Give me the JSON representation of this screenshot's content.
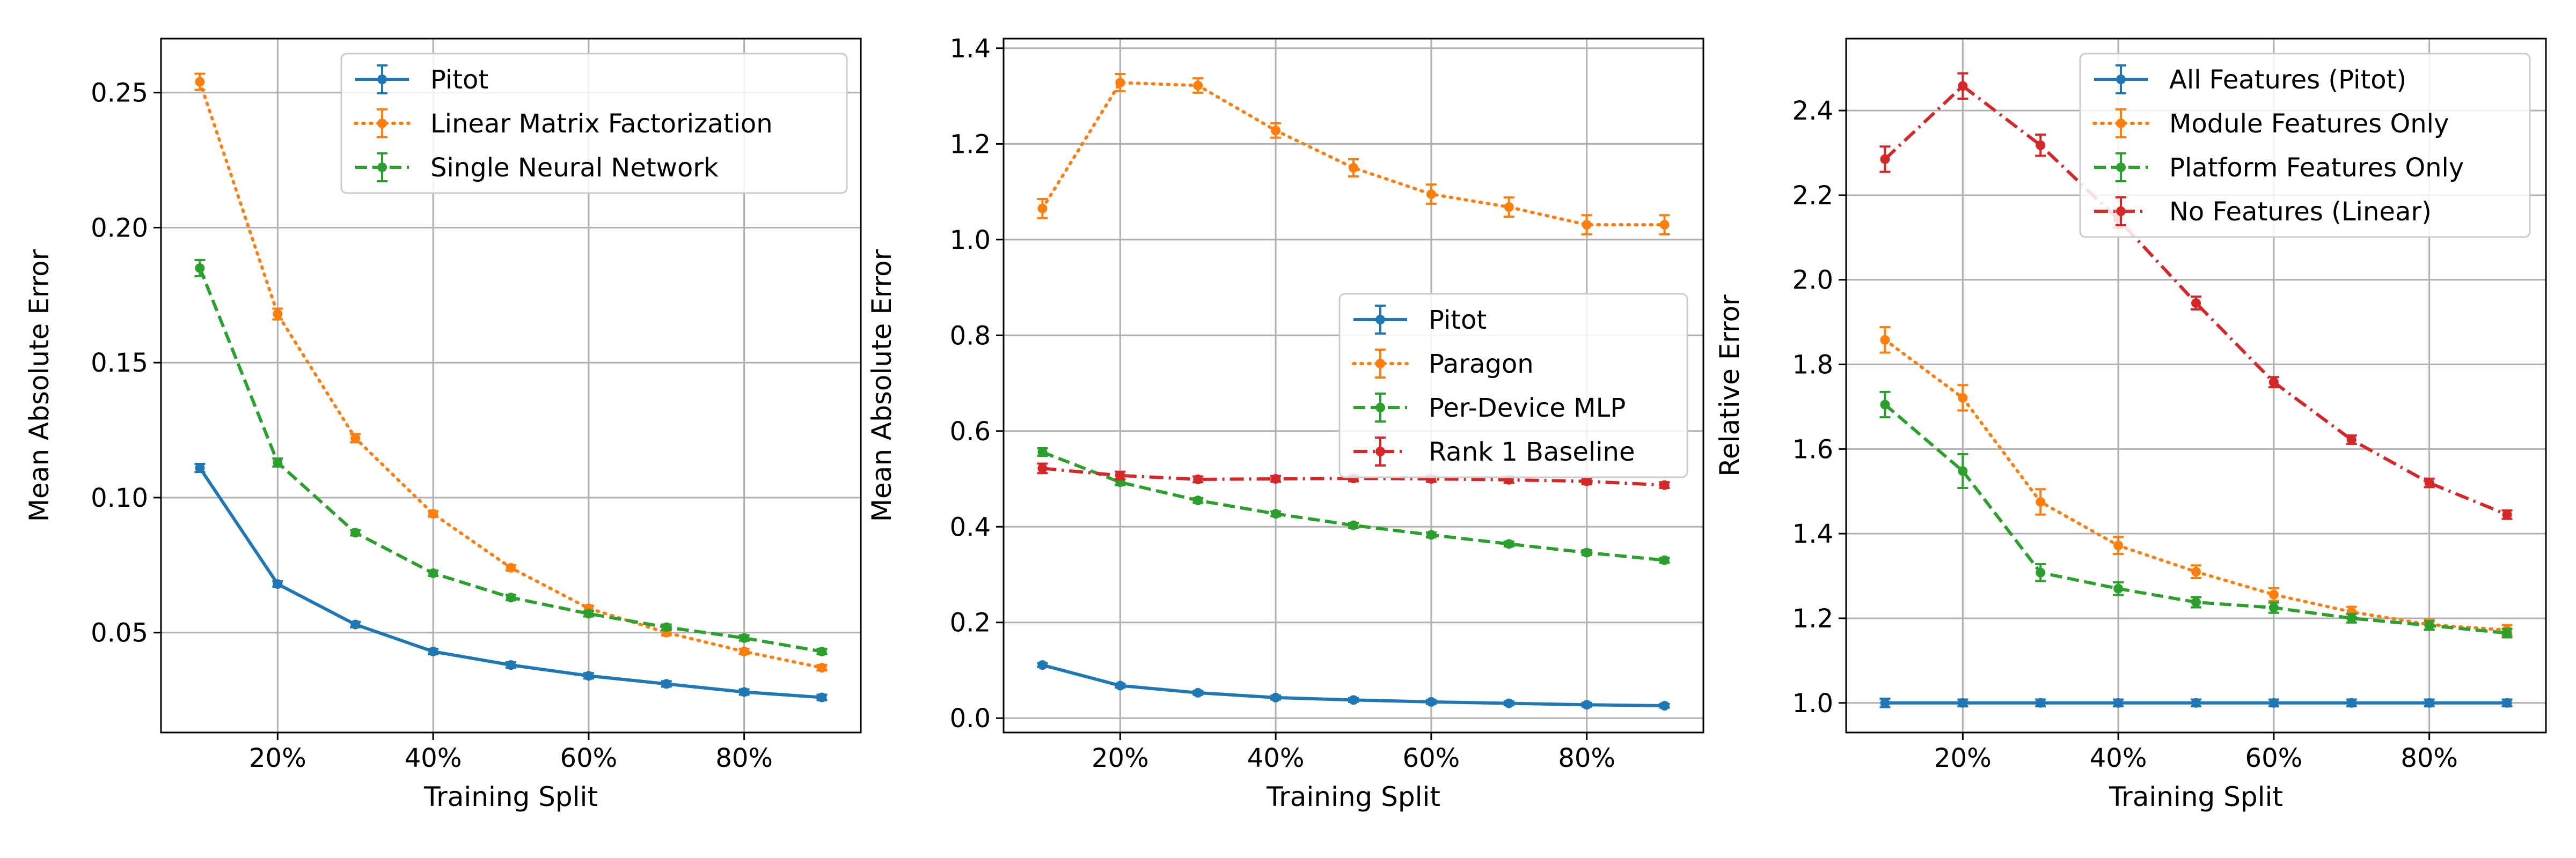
{
  "chart_data": [
    {
      "type": "line",
      "title": "",
      "xlabel": "Training Split",
      "ylabel": "Mean Absolute Error",
      "grid": true,
      "legend_position": "top-right",
      "xlim": [
        5,
        95
      ],
      "ylim": [
        0.013,
        0.27
      ],
      "xticks": [
        20,
        40,
        60,
        80
      ],
      "xtick_labels": [
        "20%",
        "40%",
        "60%",
        "80%"
      ],
      "yticks": [
        0.05,
        0.1,
        0.15,
        0.2,
        0.25
      ],
      "ytick_labels": [
        "0.05",
        "0.10",
        "0.15",
        "0.20",
        "0.25"
      ],
      "x": [
        10,
        20,
        30,
        40,
        50,
        60,
        70,
        80,
        90
      ],
      "series": [
        {
          "name": "Pitot",
          "color": "#1f77b4",
          "linestyle": "solid",
          "values": [
            0.111,
            0.068,
            0.053,
            0.043,
            0.038,
            0.034,
            0.031,
            0.028,
            0.026
          ],
          "errors": [
            0.0015,
            0.001,
            0.001,
            0.001,
            0.001,
            0.001,
            0.001,
            0.001,
            0.001
          ]
        },
        {
          "name": "Linear Matrix Factorization",
          "color": "#ff7f0e",
          "linestyle": "dotted",
          "values": [
            0.254,
            0.168,
            0.122,
            0.094,
            0.074,
            0.059,
            0.05,
            0.043,
            0.037
          ],
          "errors": [
            0.003,
            0.002,
            0.0015,
            0.001,
            0.001,
            0.001,
            0.001,
            0.001,
            0.001
          ]
        },
        {
          "name": "Single Neural Network",
          "color": "#2ca02c",
          "linestyle": "dashed",
          "values": [
            0.185,
            0.113,
            0.087,
            0.072,
            0.063,
            0.057,
            0.052,
            0.048,
            0.043
          ],
          "errors": [
            0.003,
            0.0015,
            0.001,
            0.001,
            0.001,
            0.001,
            0.001,
            0.001,
            0.001
          ]
        }
      ]
    },
    {
      "type": "line",
      "title": "",
      "xlabel": "Training Split",
      "ylabel": "Mean Absolute Error",
      "grid": true,
      "legend_position": "center-right",
      "xlim": [
        5,
        95
      ],
      "ylim": [
        -0.03,
        1.42
      ],
      "xticks": [
        20,
        40,
        60,
        80
      ],
      "xtick_labels": [
        "20%",
        "40%",
        "60%",
        "80%"
      ],
      "yticks": [
        0.0,
        0.2,
        0.4,
        0.6,
        0.8,
        1.0,
        1.2,
        1.4
      ],
      "ytick_labels": [
        "0.0",
        "0.2",
        "0.4",
        "0.6",
        "0.8",
        "1.0",
        "1.2",
        "1.4"
      ],
      "x": [
        10,
        20,
        30,
        40,
        50,
        60,
        70,
        80,
        90
      ],
      "series": [
        {
          "name": "Pitot",
          "color": "#1f77b4",
          "linestyle": "solid",
          "values": [
            0.111,
            0.068,
            0.053,
            0.043,
            0.038,
            0.034,
            0.031,
            0.028,
            0.026
          ],
          "errors": [
            0.004,
            0.004,
            0.004,
            0.004,
            0.004,
            0.004,
            0.004,
            0.004,
            0.004
          ]
        },
        {
          "name": "Paragon",
          "color": "#ff7f0e",
          "linestyle": "dotted",
          "values": [
            1.065,
            1.328,
            1.322,
            1.228,
            1.15,
            1.095,
            1.068,
            1.031,
            1.031
          ],
          "errors": [
            0.02,
            0.018,
            0.015,
            0.015,
            0.018,
            0.02,
            0.02,
            0.02,
            0.02
          ]
        },
        {
          "name": "Per-Device MLP",
          "color": "#2ca02c",
          "linestyle": "dashed",
          "values": [
            0.556,
            0.493,
            0.455,
            0.427,
            0.403,
            0.383,
            0.364,
            0.346,
            0.33
          ],
          "errors": [
            0.008,
            0.006,
            0.005,
            0.005,
            0.005,
            0.005,
            0.005,
            0.005,
            0.005
          ]
        },
        {
          "name": "Rank 1 Baseline",
          "color": "#d62728",
          "linestyle": "dashdot",
          "values": [
            0.522,
            0.507,
            0.499,
            0.5,
            0.501,
            0.5,
            0.498,
            0.495,
            0.487
          ],
          "errors": [
            0.01,
            0.008,
            0.006,
            0.006,
            0.006,
            0.006,
            0.006,
            0.006,
            0.006
          ]
        }
      ]
    },
    {
      "type": "line",
      "title": "",
      "xlabel": "Training Split",
      "ylabel": "Relative Error",
      "grid": true,
      "legend_position": "top-right",
      "xlim": [
        5,
        95
      ],
      "ylim": [
        0.93,
        2.57
      ],
      "xticks": [
        20,
        40,
        60,
        80
      ],
      "xtick_labels": [
        "20%",
        "40%",
        "60%",
        "80%"
      ],
      "yticks": [
        1.0,
        1.2,
        1.4,
        1.6,
        1.8,
        2.0,
        2.2,
        2.4
      ],
      "ytick_labels": [
        "1.0",
        "1.2",
        "1.4",
        "1.6",
        "1.8",
        "2.0",
        "2.2",
        "2.4"
      ],
      "x": [
        10,
        20,
        30,
        40,
        50,
        60,
        70,
        80,
        90
      ],
      "series": [
        {
          "name": "All Features (Pitot)",
          "color": "#1f77b4",
          "linestyle": "solid",
          "values": [
            1.0,
            1.0,
            1.0,
            1.0,
            1.0,
            1.0,
            1.0,
            1.0,
            1.0
          ],
          "errors": [
            0.01,
            0.008,
            0.008,
            0.008,
            0.008,
            0.008,
            0.008,
            0.008,
            0.008
          ]
        },
        {
          "name": "Module Features Only",
          "color": "#ff7f0e",
          "linestyle": "dotted",
          "values": [
            1.858,
            1.721,
            1.475,
            1.372,
            1.31,
            1.256,
            1.215,
            1.185,
            1.172
          ],
          "errors": [
            0.03,
            0.03,
            0.03,
            0.02,
            0.015,
            0.015,
            0.012,
            0.012,
            0.012
          ]
        },
        {
          "name": "Platform Features Only",
          "color": "#2ca02c",
          "linestyle": "dashed",
          "values": [
            1.705,
            1.548,
            1.308,
            1.27,
            1.238,
            1.225,
            1.2,
            1.183,
            1.165
          ],
          "errors": [
            0.03,
            0.04,
            0.02,
            0.015,
            0.012,
            0.012,
            0.01,
            0.01,
            0.01
          ]
        },
        {
          "name": "No Features (Linear)",
          "color": "#d62728",
          "linestyle": "dashdot",
          "values": [
            2.285,
            2.458,
            2.318,
            2.143,
            1.945,
            1.758,
            1.622,
            1.52,
            1.445
          ],
          "errors": [
            0.03,
            0.03,
            0.025,
            0.02,
            0.015,
            0.012,
            0.01,
            0.01,
            0.01
          ]
        }
      ]
    }
  ]
}
